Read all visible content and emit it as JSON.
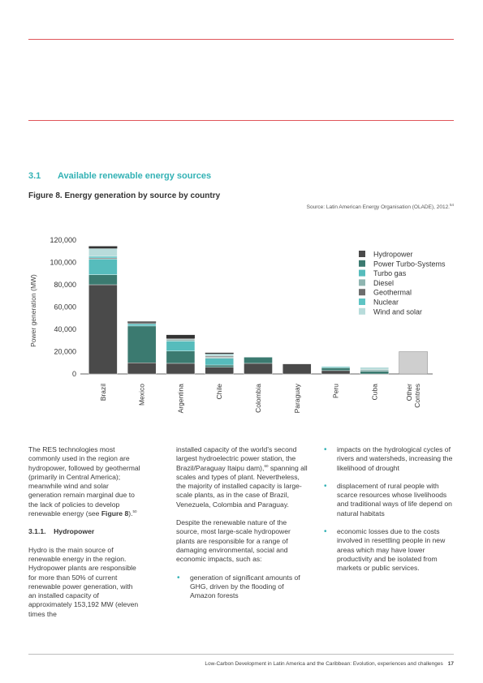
{
  "section": {
    "number": "3.1",
    "title": "Available renewable energy sources"
  },
  "figure": {
    "title": "Figure 8. Energy generation by source by country",
    "source": "Source: Latin American Energy Organisation (OLADE), 2012.",
    "source_ref": "54"
  },
  "colors": {
    "Hydropower": "#4a4a4a",
    "Power Turbo-Systems": "#3b7a70",
    "Turbo gas": "#56bcbc",
    "Diesel": "#8fb5b1",
    "Geothermal": "#6d6d6d",
    "Nuclear": "#5ec4c4",
    "Wind and solar": "#b8dcdb",
    "Other": "#cfcfcf",
    "accent": "#33b2b5",
    "rule": "#e0565b"
  },
  "chart_data": {
    "type": "bar",
    "stacked": true,
    "ylabel": "Power generation (MW)",
    "ylim": [
      0,
      120000
    ],
    "yticks": [
      "0",
      "20,000",
      "40,000",
      "60,000",
      "80,000",
      "100,000",
      "120,000"
    ],
    "categories": [
      "Brazil",
      "Mexico",
      "Argentina",
      "Chile",
      "Colombia",
      "Paraguay",
      "Peru",
      "Cuba",
      "Other Contres"
    ],
    "series": [
      {
        "name": "Hydropower",
        "values": [
          80000,
          10000,
          9500,
          6000,
          9500,
          9000,
          3000,
          0,
          0
        ]
      },
      {
        "name": "Power Turbo-Systems",
        "values": [
          9000,
          33000,
          11000,
          2000,
          5500,
          0,
          2500,
          2500,
          0
        ]
      },
      {
        "name": "Turbo gas",
        "values": [
          14000,
          2000,
          9000,
          6000,
          0,
          0,
          1000,
          0,
          0
        ]
      },
      {
        "name": "Diesel",
        "values": [
          0,
          0,
          1500,
          1000,
          0,
          0,
          0,
          1500,
          0
        ]
      },
      {
        "name": "Geothermal",
        "values": [
          1000,
          1000,
          1000,
          1000,
          0,
          0,
          0,
          0,
          0
        ]
      },
      {
        "name": "Nuclear",
        "values": [
          1500,
          0,
          0,
          0,
          0,
          0,
          0,
          0,
          0
        ]
      },
      {
        "name": "Wind and solar",
        "values": [
          7000,
          0,
          0,
          2000,
          0,
          0,
          0,
          2000,
          0
        ]
      }
    ],
    "other_total": 20000,
    "extra_top_segments": [
      2000,
      1000,
      3000,
      1000,
      0,
      0,
      0,
      0,
      0
    ],
    "legend_position": "top-right",
    "grid": false
  },
  "col1": {
    "p1_a": "The RES technologies most commonly used in the region are hydropower, followed by geothermal (primarily in Central America); meanwhile wind and solar generation remain marginal due to the lack of policies to develop renewable energy (see ",
    "p1_bold": "Figure 8",
    "p1_b": ").",
    "p1_ref": "50",
    "heading_num": "3.1.1.",
    "heading": "Hydropower",
    "p2": "Hydro is the main source of renewable energy in the region. Hydropower plants are responsible for more than 50% of current renewable power generation, with an installed capacity of approximately 153,192 MW (eleven times the"
  },
  "col2": {
    "p1_a": "installed capacity of the world’s second largest hydroelectric power station, the Brazil/Paraguay Itaipu dam),",
    "p1_ref": "60",
    "p1_b": " spanning all scales and types of plant. Nevertheless, the majority of installed capacity is large-scale plants, as in the case of Brazil, Venezuela, Colombia and Paraguay.",
    "p2": "Despite the renewable nature of the source, most large-scale hydropower plants are responsible for a range of damaging environmental, social and economic impacts, such as:",
    "bullet1": "generation of significant amounts of GHG, driven by the flooding of Amazon forests"
  },
  "col3": {
    "bullet1": "impacts on the hydrological cycles of rivers and watersheds, increasing the likelihood of drought",
    "bullet2": "displacement of rural people with scarce resources whose livelihoods and traditional ways of life depend on natural habitats",
    "bullet3": "economic losses due to the costs involved in resettling people in new areas which may have lower productivity and be isolated from markets or public services."
  },
  "footer": {
    "text": "Low-Carbon Development in Latin America and the Caribbean: Evolution, experiences and challenges",
    "page": "17"
  }
}
